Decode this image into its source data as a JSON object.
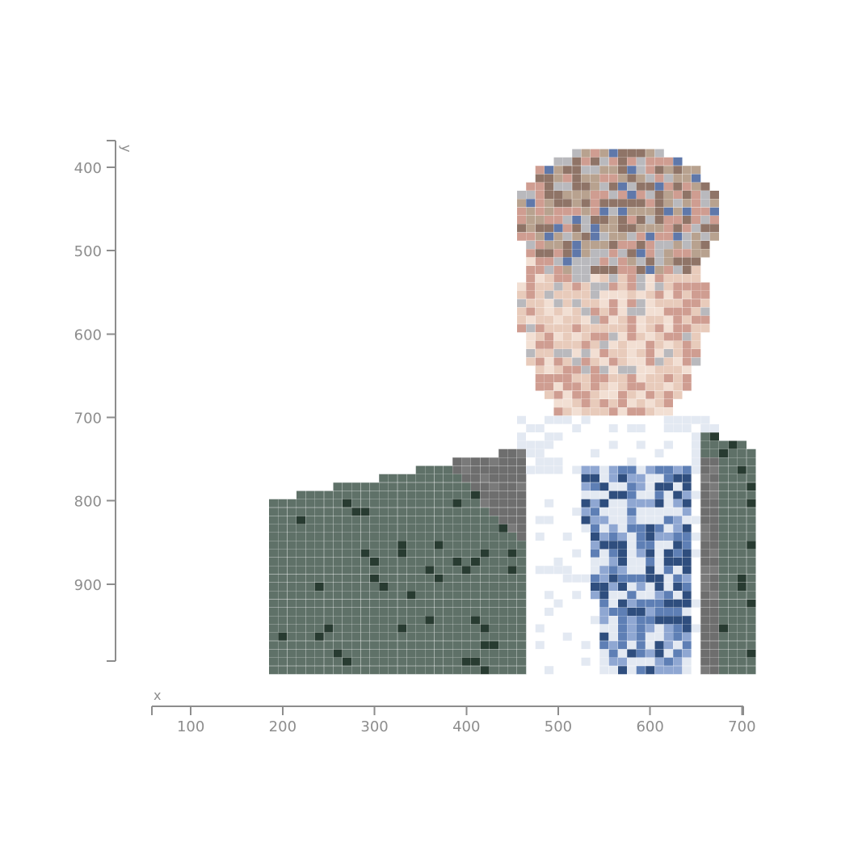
{
  "chart_data": {
    "type": "heatmap",
    "title": "",
    "xlabel": "x",
    "ylabel": "y",
    "xlim": [
      55,
      712
    ],
    "ylim": [
      998,
      368
    ],
    "x_ticks": [
      100,
      200,
      300,
      400,
      500,
      600,
      700
    ],
    "y_ticks": [
      400,
      500,
      600,
      700,
      800,
      900
    ],
    "cell_size": 10,
    "grid": false,
    "legend": "none",
    "palette": {
      "suit": "#5f7168",
      "suit_dark": "#283b31",
      "lapel": "#6e6e6e",
      "lapel_light": "#7a7a7a",
      "shirt": "#ffffff",
      "shirt_shadow": "#e3e9f2",
      "tie": "#5e7fb5",
      "tie_light": "#8fa7d2",
      "tie_dark": "#2f4e7e",
      "skin_light": "#f2dfd3",
      "skin": "#e8cbbb",
      "skin_shadow": "#cf9d91",
      "hair": "#b8a28f",
      "hair_dark": "#8f7467",
      "blue_accent": "#5f78aa",
      "edge_gray": "#b9b9bd"
    }
  }
}
